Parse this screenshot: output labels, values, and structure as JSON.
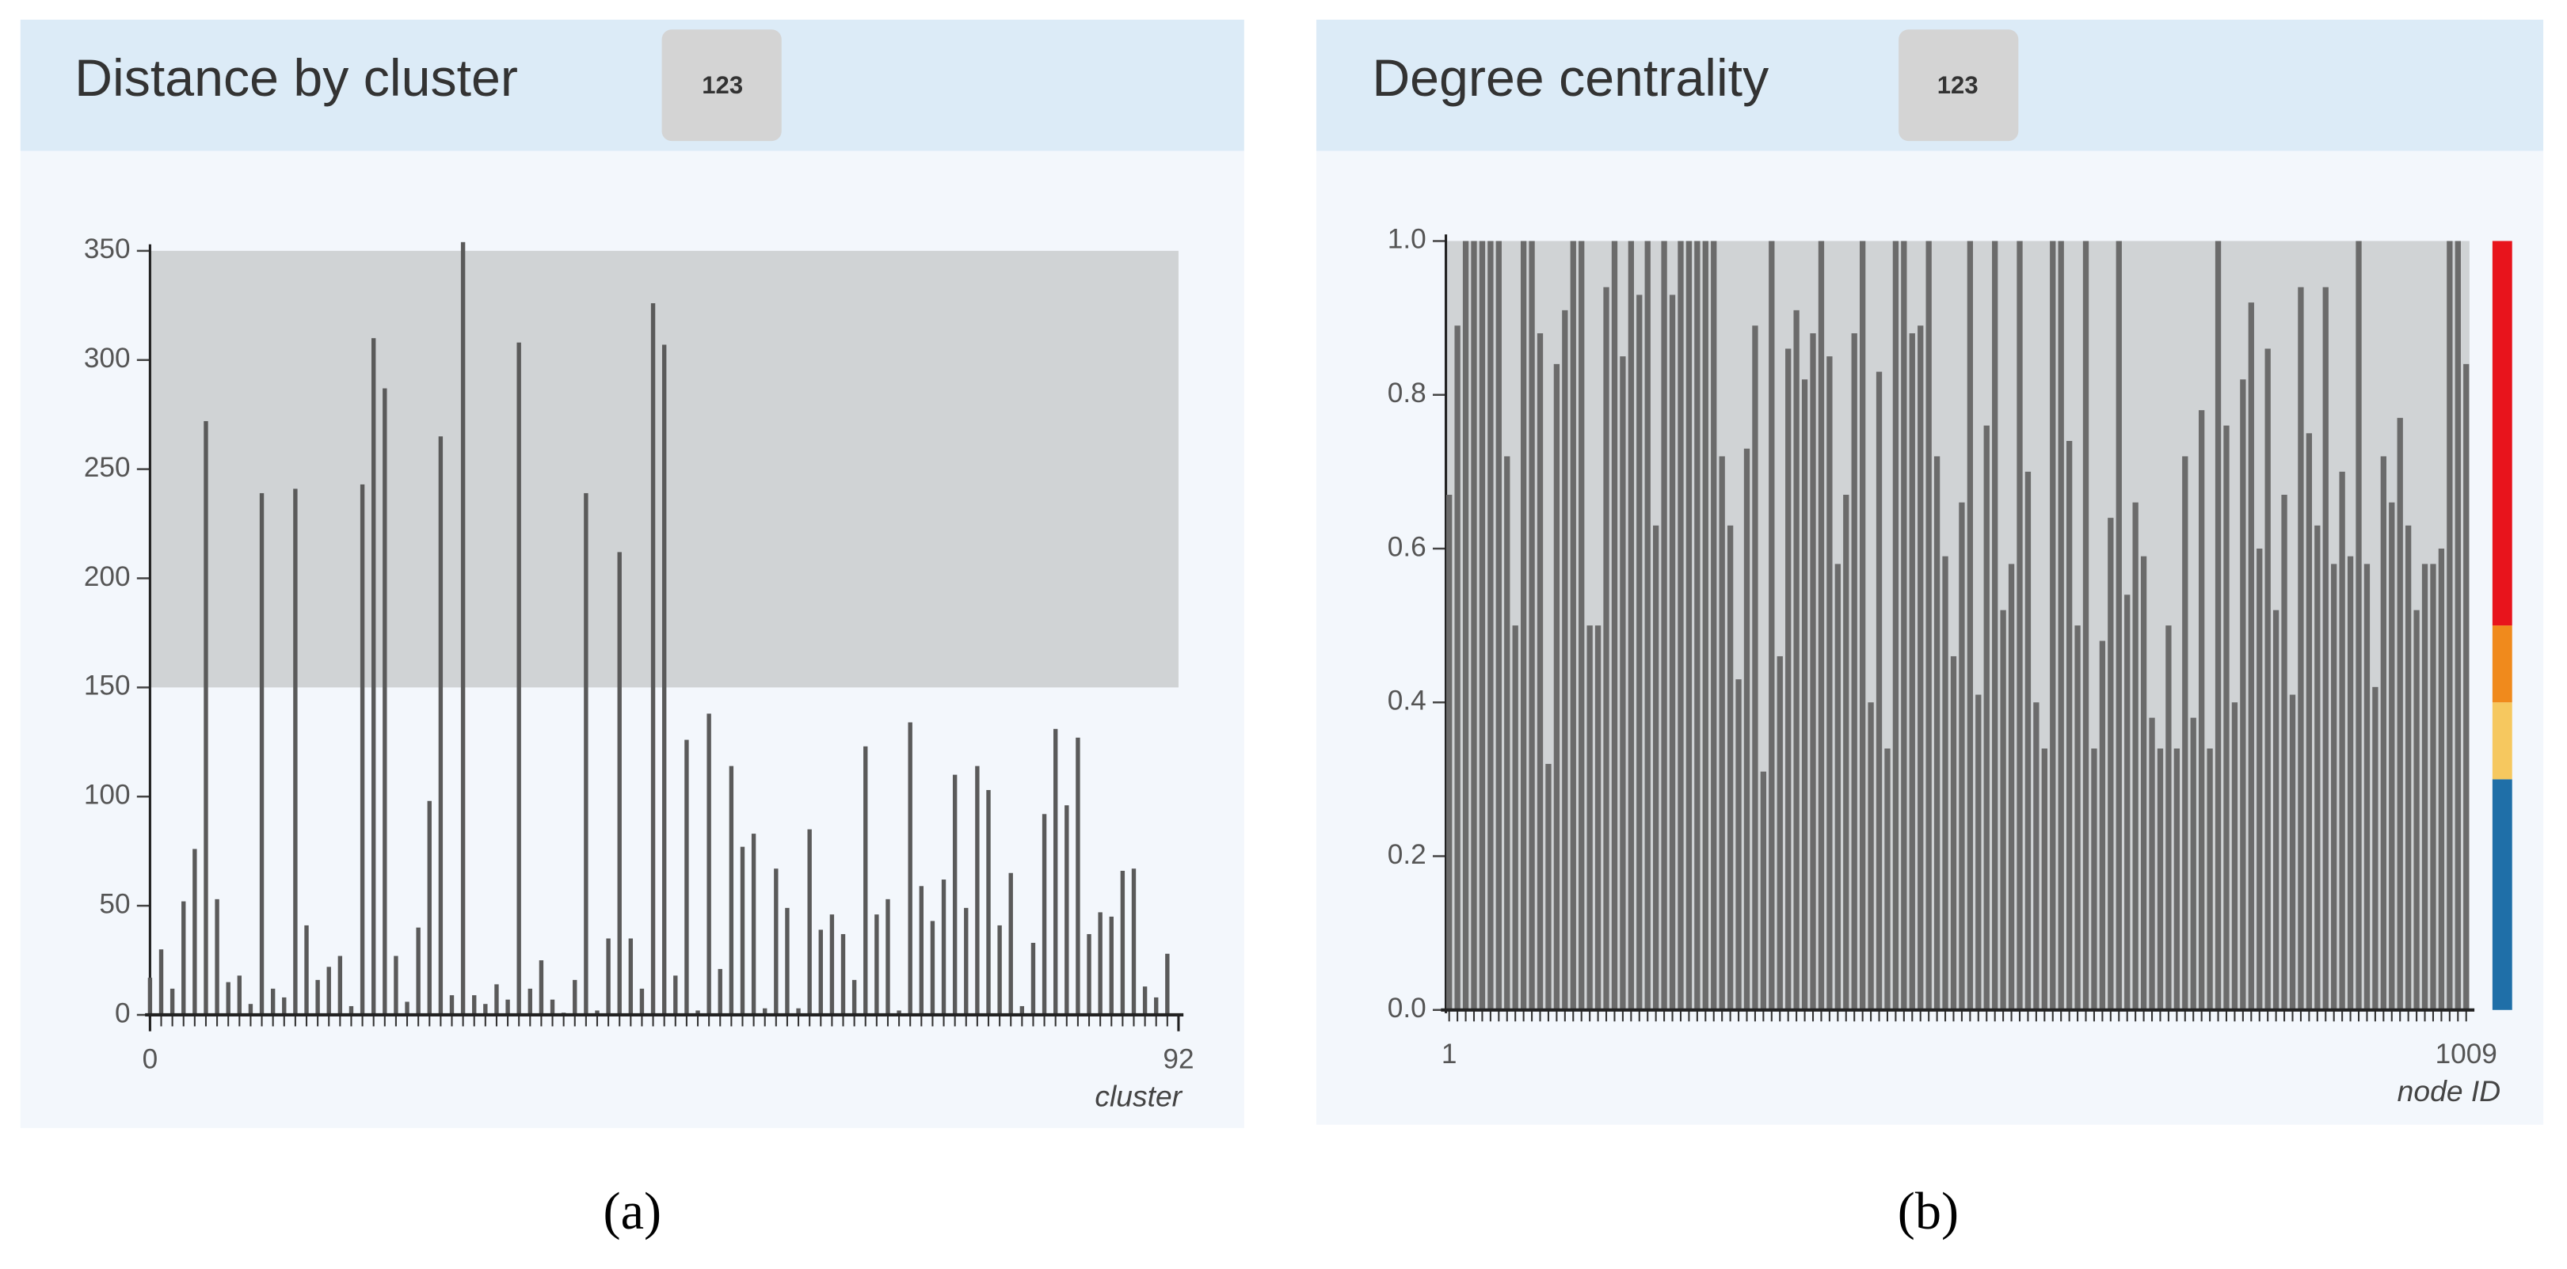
{
  "chart_data": [
    {
      "type": "bar",
      "title": "Distance by cluster",
      "badge": "123",
      "caption": "(a)",
      "xlabel": "cluster",
      "x": [
        0,
        1,
        2,
        3,
        4,
        5,
        6,
        7,
        8,
        9,
        10,
        11,
        12,
        13,
        14,
        15,
        16,
        17,
        18,
        19,
        20,
        21,
        22,
        23,
        24,
        25,
        26,
        27,
        28,
        29,
        30,
        31,
        32,
        33,
        34,
        35,
        36,
        37,
        38,
        39,
        40,
        41,
        42,
        43,
        44,
        45,
        46,
        47,
        48,
        49,
        50,
        51,
        52,
        53,
        54,
        55,
        56,
        57,
        58,
        59,
        60,
        61,
        62,
        63,
        64,
        65,
        66,
        67,
        68,
        69,
        70,
        71,
        72,
        73,
        74,
        75,
        76,
        77,
        78,
        79,
        80,
        81,
        82,
        83,
        84,
        85,
        86,
        87,
        88,
        89,
        90,
        91
      ],
      "values": [
        17,
        30,
        12,
        52,
        76,
        272,
        53,
        15,
        18,
        5,
        239,
        12,
        8,
        241,
        41,
        16,
        22,
        27,
        4,
        243,
        310,
        287,
        27,
        6,
        40,
        98,
        265,
        9,
        354,
        9,
        5,
        14,
        7,
        308,
        12,
        25,
        7,
        1,
        16,
        239,
        2,
        35,
        212,
        35,
        12,
        326,
        307,
        18,
        126,
        2,
        138,
        21,
        114,
        77,
        83,
        3,
        67,
        49,
        3,
        85,
        39,
        46,
        37,
        16,
        123,
        46,
        53,
        2,
        134,
        59,
        43,
        62,
        110,
        49,
        114,
        103,
        41,
        65,
        4,
        33,
        92,
        131,
        96,
        127,
        37,
        47,
        45,
        66,
        67,
        13,
        8,
        28
      ],
      "color": "#5a5a5a",
      "xlim": [
        0,
        92
      ],
      "xticks": [
        0,
        92
      ],
      "ylim": [
        0,
        350
      ],
      "yticks": [
        0,
        50,
        100,
        150,
        200,
        250,
        300,
        350
      ],
      "highlight": {
        "range": [
          150,
          350
        ],
        "color": "#d0d3d5"
      }
    },
    {
      "type": "bar",
      "title": "Degree centrality",
      "badge": "123",
      "caption": "(b)",
      "xlabel": "node ID",
      "categories": [
        "1",
        null,
        null,
        null,
        null,
        null,
        null,
        null,
        null,
        null,
        null,
        null,
        null,
        null,
        null,
        null,
        null,
        null,
        null,
        null,
        null,
        null,
        null,
        null,
        null,
        null,
        null,
        null,
        null,
        null,
        null,
        null,
        null,
        null,
        null,
        null,
        null,
        null,
        null,
        null,
        null,
        null,
        null,
        null,
        null,
        null,
        null,
        null,
        null,
        null,
        null,
        null,
        null,
        null,
        null,
        null,
        null,
        null,
        null,
        null,
        null,
        null,
        null,
        null,
        null,
        null,
        null,
        null,
        null,
        null,
        null,
        null,
        null,
        null,
        null,
        null,
        null,
        null,
        null,
        null,
        null,
        null,
        null,
        null,
        null,
        null,
        null,
        null,
        null,
        null,
        null,
        null,
        null,
        null,
        null,
        null,
        null,
        null,
        null,
        null,
        null,
        null,
        null,
        null,
        null,
        null,
        null,
        null,
        null,
        null,
        null,
        null,
        null,
        null,
        null,
        null,
        null,
        null,
        null,
        null,
        null,
        null,
        null,
        "1009"
      ],
      "values": [
        0.67,
        0.89,
        1,
        1,
        1,
        1,
        1,
        0.72,
        0.5,
        1,
        1,
        0.88,
        0.32,
        0.84,
        0.91,
        1,
        1,
        0.5,
        0.5,
        0.94,
        1,
        0.85,
        1,
        0.93,
        1,
        0.63,
        1,
        0.93,
        1,
        1,
        1,
        1,
        1,
        0.72,
        0.63,
        0.43,
        0.73,
        0.89,
        0.31,
        1,
        0.46,
        0.86,
        0.91,
        0.82,
        0.88,
        1,
        0.85,
        0.58,
        0.67,
        0.88,
        1,
        0.4,
        0.83,
        0.34,
        1,
        1,
        0.88,
        0.89,
        1,
        0.72,
        0.59,
        0.46,
        0.66,
        1,
        0.41,
        0.76,
        1,
        0.52,
        0.58,
        1,
        0.7,
        0.4,
        0.34,
        1,
        1,
        0.74,
        0.5,
        1,
        0.34,
        0.48,
        0.64,
        1,
        0.54,
        0.66,
        0.59,
        0.38,
        0.34,
        0.5,
        0.34,
        0.72,
        0.38,
        0.78,
        0.34,
        1,
        0.76,
        0.4,
        0.82,
        0.92,
        0.6,
        0.86,
        0.52,
        0.67,
        0.41,
        0.94,
        0.75,
        0.63,
        0.94,
        0.58,
        0.7,
        0.59,
        1,
        0.58,
        0.42,
        0.72,
        0.66,
        0.77,
        0.63,
        0.52,
        0.58,
        0.58,
        0.6,
        1,
        1,
        0.84
      ],
      "color": "#6b6b6b",
      "background": "#d0d3d5",
      "ylim": [
        0,
        1
      ],
      "yticks": [
        {
          "value": 0,
          "label": "0.0"
        },
        {
          "value": 0.2,
          "label": "0.2"
        },
        {
          "value": 0.4,
          "label": "0.4"
        },
        {
          "value": 0.6,
          "label": "0.6"
        },
        {
          "value": 0.8,
          "label": "0.8"
        },
        {
          "value": 1,
          "label": "1.0"
        }
      ],
      "color_scale": [
        {
          "from": 0,
          "to": 0.3,
          "color": "#1f6fa8"
        },
        {
          "from": 0.3,
          "to": 0.4,
          "color": "#f6c85f"
        },
        {
          "from": 0.4,
          "to": 0.5,
          "color": "#f08a1c"
        },
        {
          "from": 0.5,
          "to": 1,
          "color": "#e8141c"
        }
      ]
    }
  ]
}
